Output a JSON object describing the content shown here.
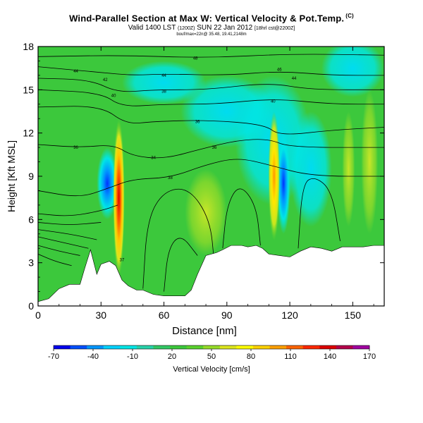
{
  "header": {
    "title": "Wind-Parallel Section at Max W: Vertical Velocity & Pot.Temp.",
    "title_mark": "(C)",
    "valid_prefix": "Valid 1400 LST",
    "valid_utc": "(1200Z)",
    "valid_date": "SUN 22 Jan 2012",
    "valid_suffix": "[18hrl cst@2200Z]",
    "meta": "bouf/max=22n@ 35.48, 19.41,2148m"
  },
  "chart_data": {
    "type": "heatmap",
    "xlabel": "Distance [nm]",
    "ylabel": "Height [Kft MSL]",
    "xlim": [
      0,
      165
    ],
    "ylim": [
      0,
      18
    ],
    "x_ticks": [
      "0",
      "30",
      "60",
      "90",
      "120",
      "150"
    ],
    "x_tick_values": [
      0,
      30,
      60,
      90,
      120,
      150
    ],
    "y_ticks": [
      "0",
      "3",
      "6",
      "9",
      "12",
      "15",
      "18"
    ],
    "y_tick_values": [
      0,
      3,
      6,
      9,
      12,
      15,
      18
    ],
    "background_level_cm_s": 20,
    "updrafts": [
      {
        "x": 38.5,
        "y_center": 7.5,
        "peak_cm_s": 170,
        "y_range": [
          3,
          14
        ]
      },
      {
        "x": 112.5,
        "y_center": 9,
        "peak_cm_s": 110,
        "y_range": [
          4,
          13
        ]
      }
    ],
    "downdrafts": [
      {
        "x": 117,
        "y_center": 8.5,
        "peak_cm_s": -70,
        "y_range": [
          5,
          12
        ]
      },
      {
        "x": 33,
        "y_center": 8.5,
        "peak_cm_s": -10,
        "y_range": [
          6,
          11
        ]
      }
    ],
    "terrain": [
      [
        0,
        0.3
      ],
      [
        5,
        0.5
      ],
      [
        10,
        1.2
      ],
      [
        15,
        1.5
      ],
      [
        20,
        1.5
      ],
      [
        22,
        2.5
      ],
      [
        25,
        3.9
      ],
      [
        28,
        2.2
      ],
      [
        30,
        2.9
      ],
      [
        34,
        3.1
      ],
      [
        37,
        2.8
      ],
      [
        40,
        1.8
      ],
      [
        43,
        1.4
      ],
      [
        47,
        1.1
      ],
      [
        50,
        1.1
      ],
      [
        55,
        0.8
      ],
      [
        60,
        0.7
      ],
      [
        65,
        0.7
      ],
      [
        70,
        0.7
      ],
      [
        73,
        1.1
      ],
      [
        76,
        2.2
      ],
      [
        80,
        3.5
      ],
      [
        85,
        3.7
      ],
      [
        88,
        3.9
      ],
      [
        92,
        4.2
      ],
      [
        97,
        4.2
      ],
      [
        100,
        4.1
      ],
      [
        104,
        4.2
      ],
      [
        107,
        4.0
      ],
      [
        110,
        3.6
      ],
      [
        115,
        3.5
      ],
      [
        120,
        3.4
      ],
      [
        125,
        3.8
      ],
      [
        130,
        4.1
      ],
      [
        135,
        4.0
      ],
      [
        140,
        3.8
      ],
      [
        145,
        4.1
      ],
      [
        150,
        4.1
      ],
      [
        155,
        4.1
      ],
      [
        160,
        4.2
      ],
      [
        165,
        4.2
      ]
    ],
    "theta_contour_labels": [
      {
        "text": "48",
        "x": 75,
        "y": 17.2
      },
      {
        "text": "46",
        "x": 115,
        "y": 16.4
      },
      {
        "text": "44",
        "x": 18,
        "y": 16.3
      },
      {
        "text": "42",
        "x": 32,
        "y": 15.7
      },
      {
        "text": "44",
        "x": 60,
        "y": 16.0
      },
      {
        "text": "44",
        "x": 122,
        "y": 15.8
      },
      {
        "text": "40",
        "x": 36,
        "y": 14.6
      },
      {
        "text": "38",
        "x": 60,
        "y": 14.9
      },
      {
        "text": "40",
        "x": 112,
        "y": 14.2
      },
      {
        "text": "36",
        "x": 18,
        "y": 11.0
      },
      {
        "text": "36",
        "x": 76,
        "y": 12.8
      },
      {
        "text": "36",
        "x": 84,
        "y": 11.0
      },
      {
        "text": "34",
        "x": 55,
        "y": 10.3
      },
      {
        "text": "38",
        "x": 63,
        "y": 8.9
      },
      {
        "text": "37",
        "x": 40,
        "y": 3.2
      }
    ],
    "colorbar": {
      "label": "Vertical Velocity [cm/s]",
      "tick_labels": [
        "-70",
        "-40",
        "-10",
        "20",
        "50",
        "80",
        "110",
        "140",
        "170"
      ],
      "tick_values": [
        -70,
        -40,
        -10,
        20,
        50,
        80,
        110,
        140,
        170
      ],
      "colors": [
        "#0000ee",
        "#0050ff",
        "#0096ff",
        "#00d2ff",
        "#00e6e6",
        "#28d2aa",
        "#32c864",
        "#3cc83c",
        "#5ad22d",
        "#96dc28",
        "#dce61e",
        "#ffff00",
        "#ffd200",
        "#ffa000",
        "#ff6400",
        "#ff2800",
        "#dc0000",
        "#b4004b",
        "#a000a0"
      ]
    }
  }
}
